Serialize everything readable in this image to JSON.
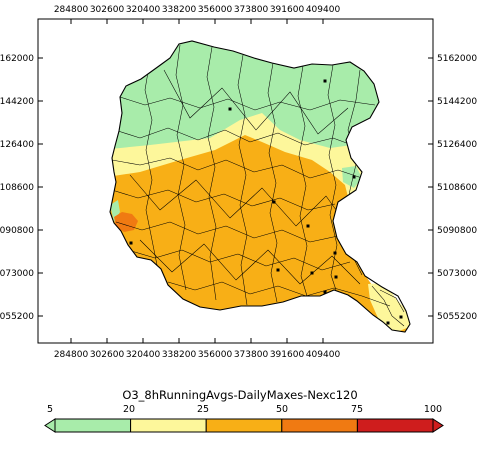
{
  "map": {
    "x_ticks": [
      "284800",
      "302600",
      "320400",
      "338200",
      "356000",
      "373800",
      "391600",
      "409400"
    ],
    "y_ticks": [
      "5162000",
      "5144200",
      "5126400",
      "5108600",
      "5090800",
      "5073000",
      "5055200"
    ],
    "boundary_color": "#000000",
    "zones": [
      {
        "name": "north",
        "range": "5-20",
        "color": "#a8ecaa"
      },
      {
        "name": "band",
        "range": "20-25",
        "color": "#fdf79b"
      },
      {
        "name": "south",
        "range": "25-50",
        "color": "#f8af16"
      },
      {
        "name": "hotspot",
        "range": "50-75",
        "color": "#f07a12"
      }
    ],
    "site_markers": "black-square-icon"
  },
  "legend": {
    "title": "O3_8hRunningAvgs-DailyMaxes-Nexc120",
    "labels": [
      "5",
      "20",
      "25",
      "50",
      "75",
      "100"
    ],
    "colors": [
      "#a8ecaa",
      "#fdf79b",
      "#f8af16",
      "#f07a12",
      "#cf1d1d"
    ],
    "left_arrow_color": "#a8ecaa",
    "right_arrow_color": "#cf1d1d"
  }
}
